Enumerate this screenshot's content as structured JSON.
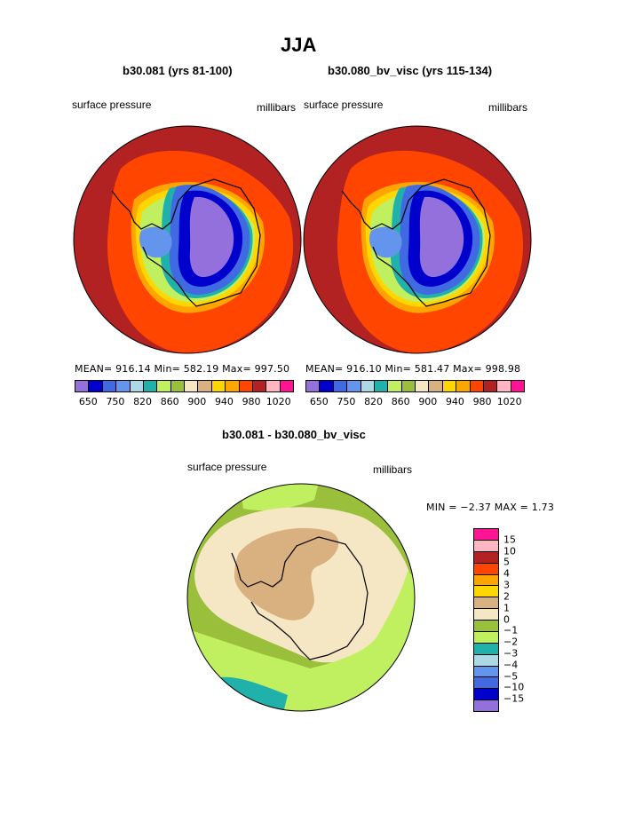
{
  "page_title": "JJA",
  "left_panel": {
    "title": "b30.081 (yrs 81-100)",
    "variable": "surface pressure",
    "units": "millibars",
    "stats": "MEAN= 916.14   Min= 582.19   Max= 997.50"
  },
  "right_panel": {
    "title": "b30.080_bv_visc (yrs 115-134)",
    "variable": "surface pressure",
    "units": "millibars",
    "stats": "MEAN= 916.10   Min= 581.47   Max= 998.98"
  },
  "diff_panel": {
    "title": "b30.081 - b30.080_bv_visc",
    "variable": "surface pressure",
    "units": "millibars",
    "minmax": "MIN =   −2.37 MAX =    1.73"
  },
  "top_colorbar": {
    "colors": [
      "#9370db",
      "#0000cd",
      "#4169e1",
      "#6495ed",
      "#add8e6",
      "#20b2aa",
      "#c0f060",
      "#9abf3a",
      "#f5e6c4",
      "#d9b07f",
      "#ffd700",
      "#ffa500",
      "#ff4500",
      "#b22222",
      "#ffb6c1",
      "#ff1493"
    ],
    "tick_labels": [
      "650",
      "750",
      "820",
      "860",
      "900",
      "940",
      "980",
      "1020"
    ]
  },
  "diff_colorbar": {
    "colors": [
      "#ff1493",
      "#ffb6c1",
      "#b22222",
      "#ff4500",
      "#ffa500",
      "#ffd700",
      "#d9b07f",
      "#f5e6c4",
      "#9abf3a",
      "#c0f060",
      "#20b2aa",
      "#add8e6",
      "#6495ed",
      "#4169e1",
      "#0000cd",
      "#9370db"
    ],
    "tick_labels": [
      "15",
      "10",
      "5",
      "4",
      "3",
      "2",
      "1",
      "0",
      "−1",
      "−2",
      "−3",
      "−4",
      "−5",
      "−10",
      "−15"
    ]
  }
}
